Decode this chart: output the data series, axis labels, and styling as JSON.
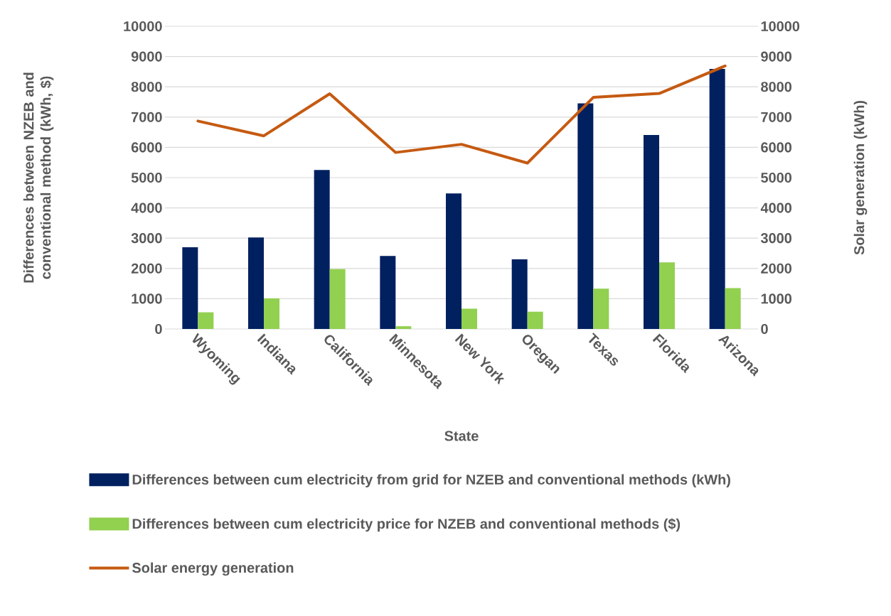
{
  "chart_data": {
    "type": "bar",
    "xlabel": "State",
    "ylabel": "Differences between NZEB and conventional method (kWh, $)",
    "y2label": "Solar generation (kWh)",
    "categories": [
      "Wyoming",
      "Indiana",
      "California",
      "Minnesota",
      "New York",
      "Oregan",
      "Texas",
      "Florida",
      "Arizona"
    ],
    "series": [
      {
        "name": "Differences between cum electricity from grid for NZEB and conventional methods (kWh)",
        "type": "bar",
        "color": "#002060",
        "values": [
          2700,
          3020,
          5250,
          2410,
          4480,
          2300,
          7450,
          6410,
          8590
        ]
      },
      {
        "name": "Differences between cum electricity price for NZEB and conventional methods ($)",
        "type": "bar",
        "color": "#92d050",
        "values": [
          550,
          1010,
          1980,
          90,
          670,
          570,
          1330,
          2200,
          1350
        ]
      },
      {
        "name": "Solar energy generation",
        "type": "line",
        "axis": "y2",
        "color": "#c55a11",
        "values": [
          6870,
          6380,
          7770,
          5830,
          6100,
          5480,
          7650,
          7780,
          8690
        ]
      }
    ],
    "ylim": [
      0,
      10000
    ],
    "yticks": [
      0,
      1000,
      2000,
      3000,
      4000,
      5000,
      6000,
      7000,
      8000,
      9000,
      10000
    ],
    "y2lim": [
      0,
      10000
    ],
    "y2ticks": [
      0,
      1000,
      2000,
      3000,
      4000,
      5000,
      6000,
      7000,
      8000,
      9000,
      10000
    ],
    "grid": "y",
    "legend": "bottom"
  }
}
